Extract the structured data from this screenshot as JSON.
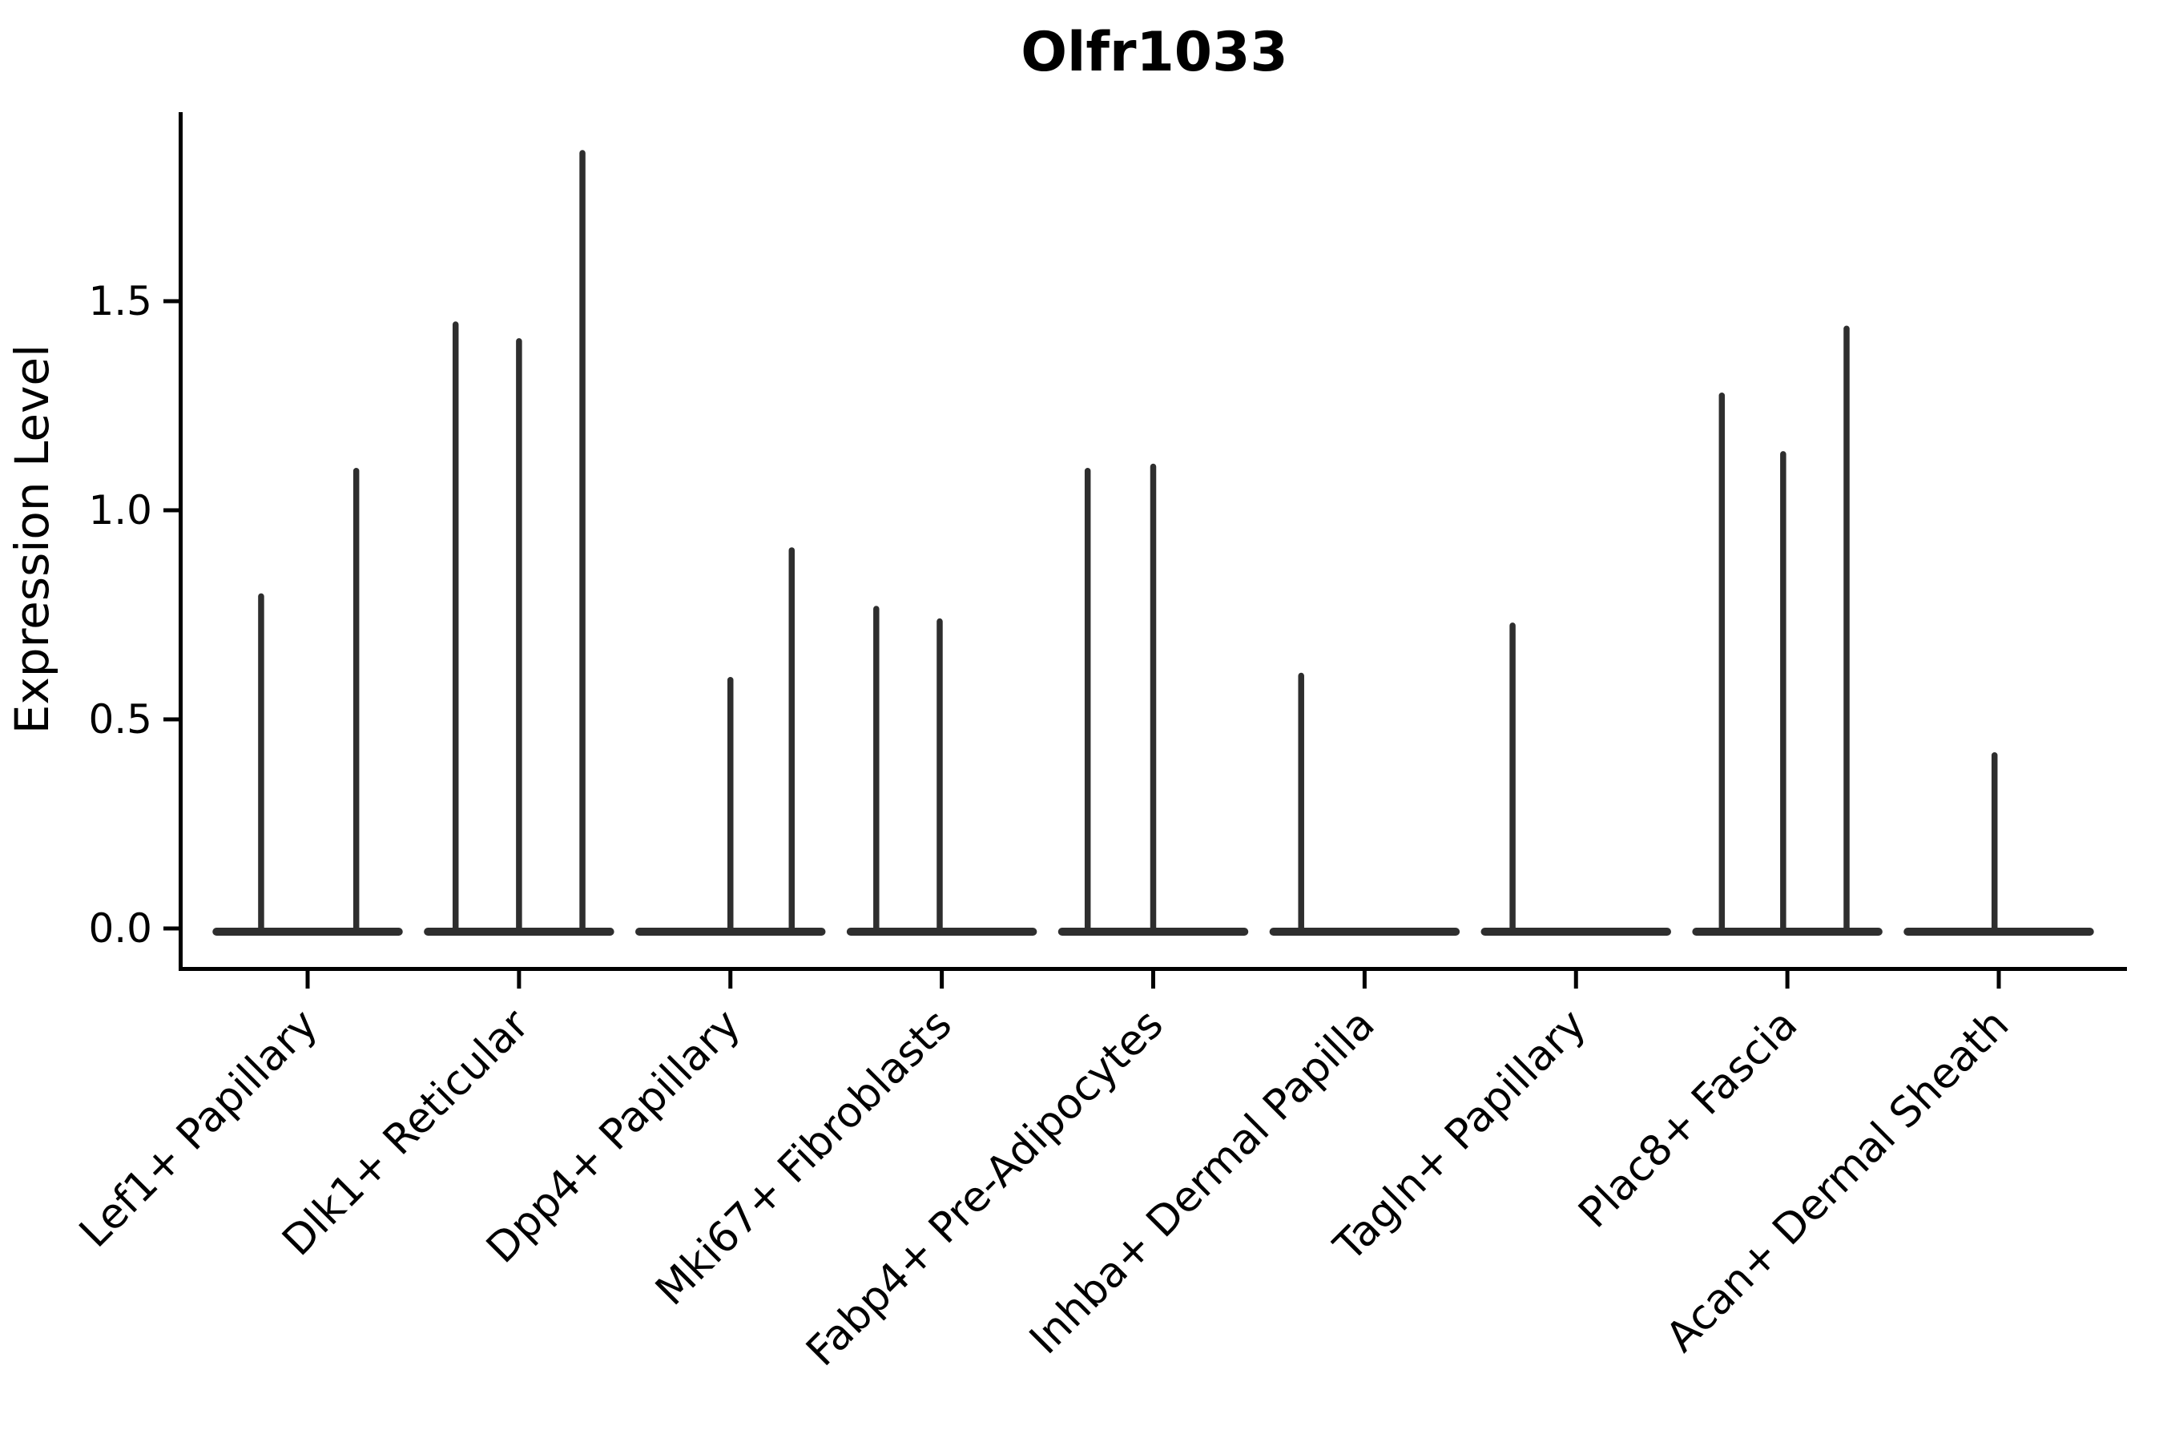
{
  "title": "Olfr1033",
  "chart_data": {
    "type": "violin",
    "title": "Olfr1033",
    "ylabel": "Expression Level",
    "xlabel": "",
    "legend": "none",
    "grid": false,
    "background": "#ffffff",
    "categories": [
      "Lef1+ Papillary",
      "Dlk1+ Reticular",
      "Dpp4+ Papillary",
      "Mki67+ Fibroblasts",
      "Fabp4+ Pre-Adipocytes",
      "Inhba+ Dermal Papilla",
      "Tagln+ Papillary",
      "Plac8+ Fascia",
      "Acan+ Dermal Sheath"
    ],
    "ytick_labels": [
      "0.0",
      "0.5",
      "1.0",
      "1.5"
    ],
    "ytick_values": [
      0.0,
      0.5,
      1.0,
      1.5
    ],
    "ylim": [
      -0.092,
      1.952
    ],
    "violin_halfwidth": 0.45,
    "baseline_value": 0.0,
    "series": [
      {
        "category": "Lef1+ Papillary",
        "spikes": [
          {
            "offset": -0.22,
            "value": 0.8
          },
          {
            "offset": 0.23,
            "value": 1.1
          }
        ]
      },
      {
        "category": "Dlk1+ Reticular",
        "spikes": [
          {
            "offset": -0.3,
            "value": 1.45
          },
          {
            "offset": 0.0,
            "value": 1.41
          },
          {
            "offset": 0.3,
            "value": 1.86
          }
        ]
      },
      {
        "category": "Dpp4+ Papillary",
        "spikes": [
          {
            "offset": 0.0,
            "value": 0.6
          },
          {
            "offset": 0.29,
            "value": 0.91
          }
        ]
      },
      {
        "category": "Mki67+ Fibroblasts",
        "spikes": [
          {
            "offset": -0.31,
            "value": 0.77
          },
          {
            "offset": -0.01,
            "value": 0.74
          }
        ]
      },
      {
        "category": "Fabp4+ Pre-Adipocytes",
        "spikes": [
          {
            "offset": -0.31,
            "value": 1.1
          },
          {
            "offset": 0.0,
            "value": 1.11
          }
        ]
      },
      {
        "category": "Inhba+ Dermal Papilla",
        "spikes": [
          {
            "offset": -0.3,
            "value": 0.61
          }
        ]
      },
      {
        "category": "Tagln+ Papillary",
        "spikes": [
          {
            "offset": -0.3,
            "value": 0.73
          }
        ]
      },
      {
        "category": "Plac8+ Fascia",
        "spikes": [
          {
            "offset": -0.31,
            "value": 1.28
          },
          {
            "offset": -0.02,
            "value": 1.14
          },
          {
            "offset": 0.28,
            "value": 1.44
          }
        ]
      },
      {
        "category": "Acan+ Dermal Sheath",
        "spikes": [
          {
            "offset": -0.02,
            "value": 0.42
          }
        ]
      }
    ],
    "colors": {
      "violin_line": "#2e2e2e",
      "spine": "#000000",
      "text": "#000000",
      "background": "#ffffff"
    }
  }
}
